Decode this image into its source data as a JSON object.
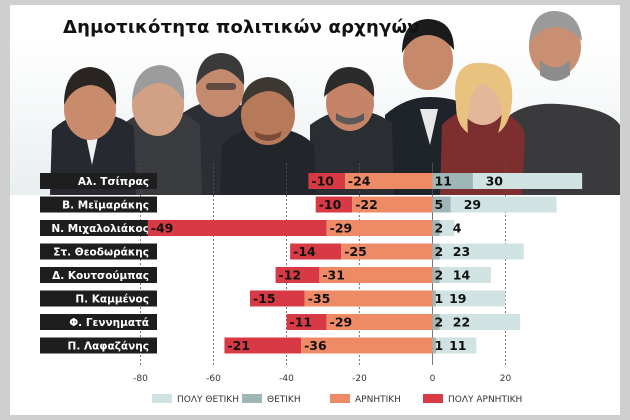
{
  "title": "Δημοτικότητα πολιτικών αρχηγών",
  "chart_data": {
    "type": "bar",
    "stacked": "diverging",
    "title": "Δημοτικότητα πολιτικών αρχηγών",
    "categories": [
      "Αλ. Τσίπρας",
      "Β. Μεϊμαράκης",
      "Ν. Μιχαλολιάκος",
      "Στ. Θεοδωράκης",
      "Δ. Κουτσούμπας",
      "Π. Καμμένος",
      "Φ. Γεννηματά",
      "Π. Λαφαζάνης"
    ],
    "series": [
      {
        "name": "ΠΟΛΥ ΘΕΤΙΚΗ",
        "color": "#d0e2e2",
        "values": [
          30,
          29,
          4,
          23,
          14,
          19,
          22,
          11
        ]
      },
      {
        "name": "ΘΕΤΙΚΗ",
        "color": "#9fb6b7",
        "values": [
          11,
          5,
          2,
          2,
          2,
          1,
          2,
          1
        ]
      },
      {
        "name": "ΑΡΝΗΤΙΚΗ",
        "color": "#ee8a66",
        "values": [
          -24,
          -22,
          -29,
          -25,
          -31,
          -35,
          -29,
          -36
        ]
      },
      {
        "name": "ΠΟΛΥ ΑΡΝΗΤΙΚΗ",
        "color": "#d83a45",
        "values": [
          -10,
          -10,
          -49,
          -14,
          -12,
          -15,
          -11,
          -21
        ]
      }
    ],
    "xlim": [
      -80,
      40
    ],
    "xticks": [
      -80,
      -60,
      -40,
      -20,
      0,
      20
    ],
    "grid": true,
    "legend": "bottom"
  }
}
